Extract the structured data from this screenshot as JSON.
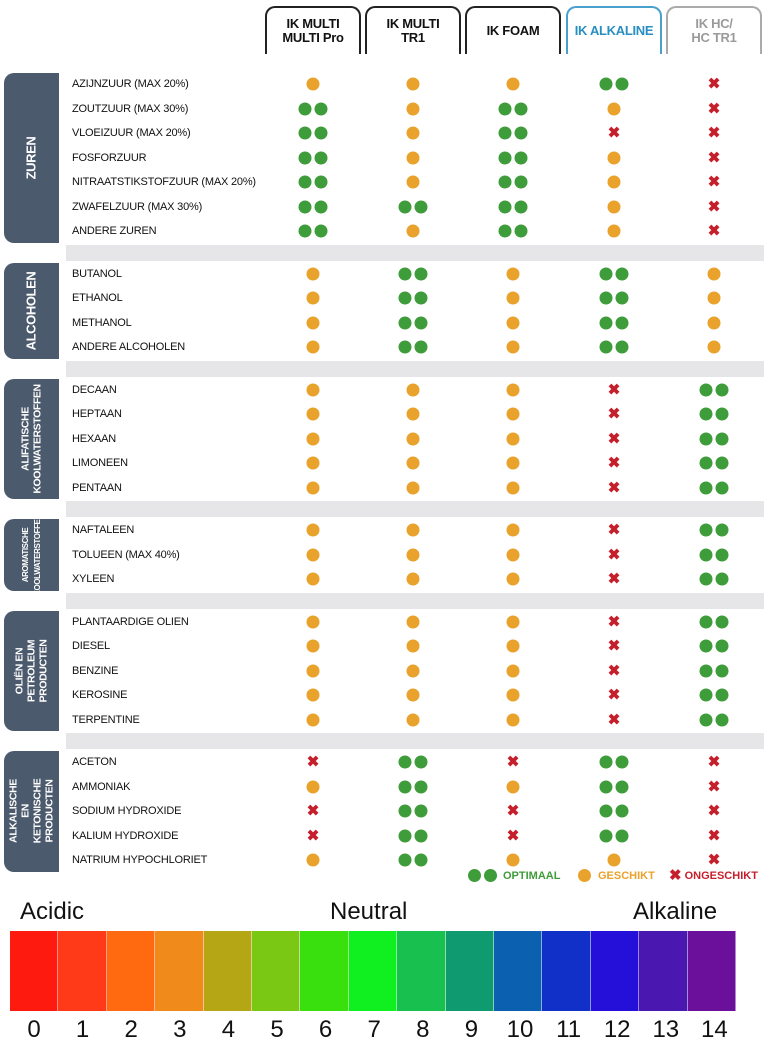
{
  "columns": [
    {
      "label": "IK MULTI\nMULTI Pro",
      "color": "#111111",
      "border": "#222222"
    },
    {
      "label": "IK MULTI\nTR1",
      "color": "#111111",
      "border": "#222222"
    },
    {
      "label": "IK FOAM",
      "color": "#111111",
      "border": "#222222"
    },
    {
      "label": "IK ALKALINE",
      "color": "#2a8fc0",
      "border": "#4aa0cc"
    },
    {
      "label": "IK HC/\nHC TR1",
      "color": "#9a9a9a",
      "border": "#aaaaaa"
    }
  ],
  "groups": [
    {
      "label": "ZUREN",
      "rows": [
        {
          "name": "AZIJNZUUR (MAX 20%)",
          "r": [
            "1",
            "1",
            "1",
            "2",
            "x"
          ]
        },
        {
          "name": "ZOUTZUUR (MAX 30%)",
          "r": [
            "2",
            "1",
            "2",
            "1",
            "x"
          ]
        },
        {
          "name": "VLOEIZUUR (MAX 20%)",
          "r": [
            "2",
            "1",
            "2",
            "x",
            "x"
          ]
        },
        {
          "name": "FOSFORZUUR",
          "r": [
            "2",
            "1",
            "2",
            "1",
            "x"
          ]
        },
        {
          "name": "NITRAATSTIKSTOFZUUR (MAX 20%)",
          "r": [
            "2",
            "1",
            "2",
            "1",
            "x"
          ]
        },
        {
          "name": "ZWAFELZUUR (MAX 30%)",
          "r": [
            "2",
            "2",
            "2",
            "1",
            "x"
          ]
        },
        {
          "name": "ANDERE ZUREN",
          "r": [
            "2",
            "1",
            "2",
            "1",
            "x"
          ]
        }
      ]
    },
    {
      "label": "ALCOHOLEN",
      "rows": [
        {
          "name": "BUTANOL",
          "r": [
            "1",
            "2",
            "1",
            "2",
            "1"
          ]
        },
        {
          "name": "ETHANOL",
          "r": [
            "1",
            "2",
            "1",
            "2",
            "1"
          ]
        },
        {
          "name": "METHANOL",
          "r": [
            "1",
            "2",
            "1",
            "2",
            "1"
          ]
        },
        {
          "name": "ANDERE ALCOHOLEN",
          "r": [
            "1",
            "2",
            "1",
            "2",
            "1"
          ]
        }
      ]
    },
    {
      "label": "ALIFATISCHE\nKOOLWATERSTOFFEN",
      "rows": [
        {
          "name": "DECAAN",
          "r": [
            "1",
            "1",
            "1",
            "x",
            "2"
          ]
        },
        {
          "name": "HEPTAAN",
          "r": [
            "1",
            "1",
            "1",
            "x",
            "2"
          ]
        },
        {
          "name": "HEXAAN",
          "r": [
            "1",
            "1",
            "1",
            "x",
            "2"
          ]
        },
        {
          "name": "LIMONEEN",
          "r": [
            "1",
            "1",
            "1",
            "x",
            "2"
          ]
        },
        {
          "name": "PENTAAN",
          "r": [
            "1",
            "1",
            "1",
            "x",
            "2"
          ]
        }
      ]
    },
    {
      "label": "AROMATISCHE\nKOOLWATERSTOFFEN",
      "rows": [
        {
          "name": "NAFTALEEN",
          "r": [
            "1",
            "1",
            "1",
            "x",
            "2"
          ]
        },
        {
          "name": "TOLUEEN (MAX 40%)",
          "r": [
            "1",
            "1",
            "1",
            "x",
            "2"
          ]
        },
        {
          "name": "XYLEEN",
          "r": [
            "1",
            "1",
            "1",
            "x",
            "2"
          ]
        }
      ]
    },
    {
      "label": "OLIËN EN PETROLEUM\nPRODUCTEN",
      "rows": [
        {
          "name": "PLANTAARDIGE OLIEN",
          "r": [
            "1",
            "1",
            "1",
            "x",
            "2"
          ]
        },
        {
          "name": "DIESEL",
          "r": [
            "1",
            "1",
            "1",
            "x",
            "2"
          ]
        },
        {
          "name": "BENZINE",
          "r": [
            "1",
            "1",
            "1",
            "x",
            "2"
          ]
        },
        {
          "name": "KEROSINE",
          "r": [
            "1",
            "1",
            "1",
            "x",
            "2"
          ]
        },
        {
          "name": "TERPENTINE",
          "r": [
            "1",
            "1",
            "1",
            "x",
            "2"
          ]
        }
      ]
    },
    {
      "label": "ALKALISCHE EN\nKETONISCHE PRODUCTEN",
      "rows": [
        {
          "name": "ACETON",
          "r": [
            "x",
            "2",
            "x",
            "2",
            "x"
          ]
        },
        {
          "name": "AMMONIAK",
          "r": [
            "1",
            "2",
            "1",
            "2",
            "x"
          ]
        },
        {
          "name": "SODIUM HYDROXIDE",
          "r": [
            "x",
            "2",
            "x",
            "2",
            "x"
          ]
        },
        {
          "name": "KALIUM HYDROXIDE",
          "r": [
            "x",
            "2",
            "x",
            "2",
            "x"
          ]
        },
        {
          "name": "NATRIUM HYPOCHLORIET",
          "r": [
            "1",
            "2",
            "1",
            "1",
            "x"
          ]
        }
      ]
    }
  ],
  "legend": {
    "optimal": "OPTIMAAL",
    "suitable": "GESCHIKT",
    "unsuitable": "ONGESCHIKT",
    "x_symbol": "✖"
  },
  "colors": {
    "green": "#3f9c3a",
    "orange": "#e9a22b",
    "red": "#c61f2c",
    "group": "#4b5a6c"
  },
  "ph": {
    "acidic": "Acidic",
    "neutral": "Neutral",
    "alkaline": "Alkaline",
    "values": [
      "0",
      "1",
      "2",
      "3",
      "4",
      "5",
      "6",
      "7",
      "8",
      "9",
      "10",
      "11",
      "12",
      "13",
      "14"
    ],
    "colors": [
      "#ff1a10",
      "#ff3a18",
      "#ff6a10",
      "#f08a1a",
      "#b4a614",
      "#7ac814",
      "#3ae00e",
      "#10f020",
      "#18c050",
      "#109a70",
      "#0c60b0",
      "#1030c8",
      "#2410d8",
      "#4a18b0",
      "#6a109a"
    ]
  }
}
